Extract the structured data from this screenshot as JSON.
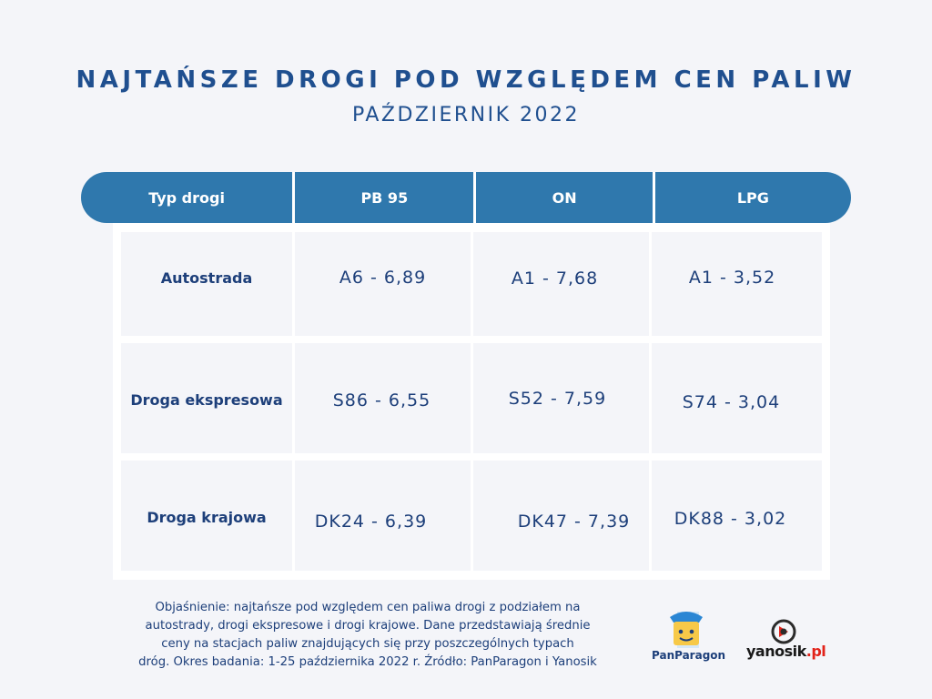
{
  "title": "NAJTAŃSZE DROGI POD WZGLĘDEM CEN PALIW",
  "subtitle": "PAŹDZIERNIK 2022",
  "table": {
    "headers": [
      "Typ drogi",
      "PB 95",
      "ON",
      "LPG"
    ],
    "rows": [
      {
        "road": "Autostrada",
        "pb95": "A6 - 6,89",
        "on": "A1 - 7,68",
        "lpg": "A1 - 3,52"
      },
      {
        "road": "Droga ekspresowa",
        "pb95": "S86 - 6,55",
        "on": "S52 - 7,59",
        "lpg": "S74 - 3,04"
      },
      {
        "road": "Droga krajowa",
        "pb95": "DK24 - 6,39",
        "on": "DK47 - 7,39",
        "lpg": "DK88 - 3,02"
      }
    ]
  },
  "note": {
    "lines": [
      "Objaśnienie: najtańsze pod względem cen paliwa drogi z podziałem na",
      "autostrady, drogi ekspresowe i drogi krajowe. Dane przedstawiają średnie",
      "ceny na stacjach paliw znajdujących się przy poszczególnych typach",
      "dróg. Okres badania: 1-25 października 2022 r. Źródło: PanParagon i Yanosik"
    ]
  },
  "logos": {
    "panparagon": "PanParagon",
    "yanosik_main": "yanosik",
    "yanosik_suffix": ".pl"
  },
  "colors": {
    "accent": "#2f78ad",
    "text": "#1d3f7a",
    "background": "#f4f5f9"
  }
}
